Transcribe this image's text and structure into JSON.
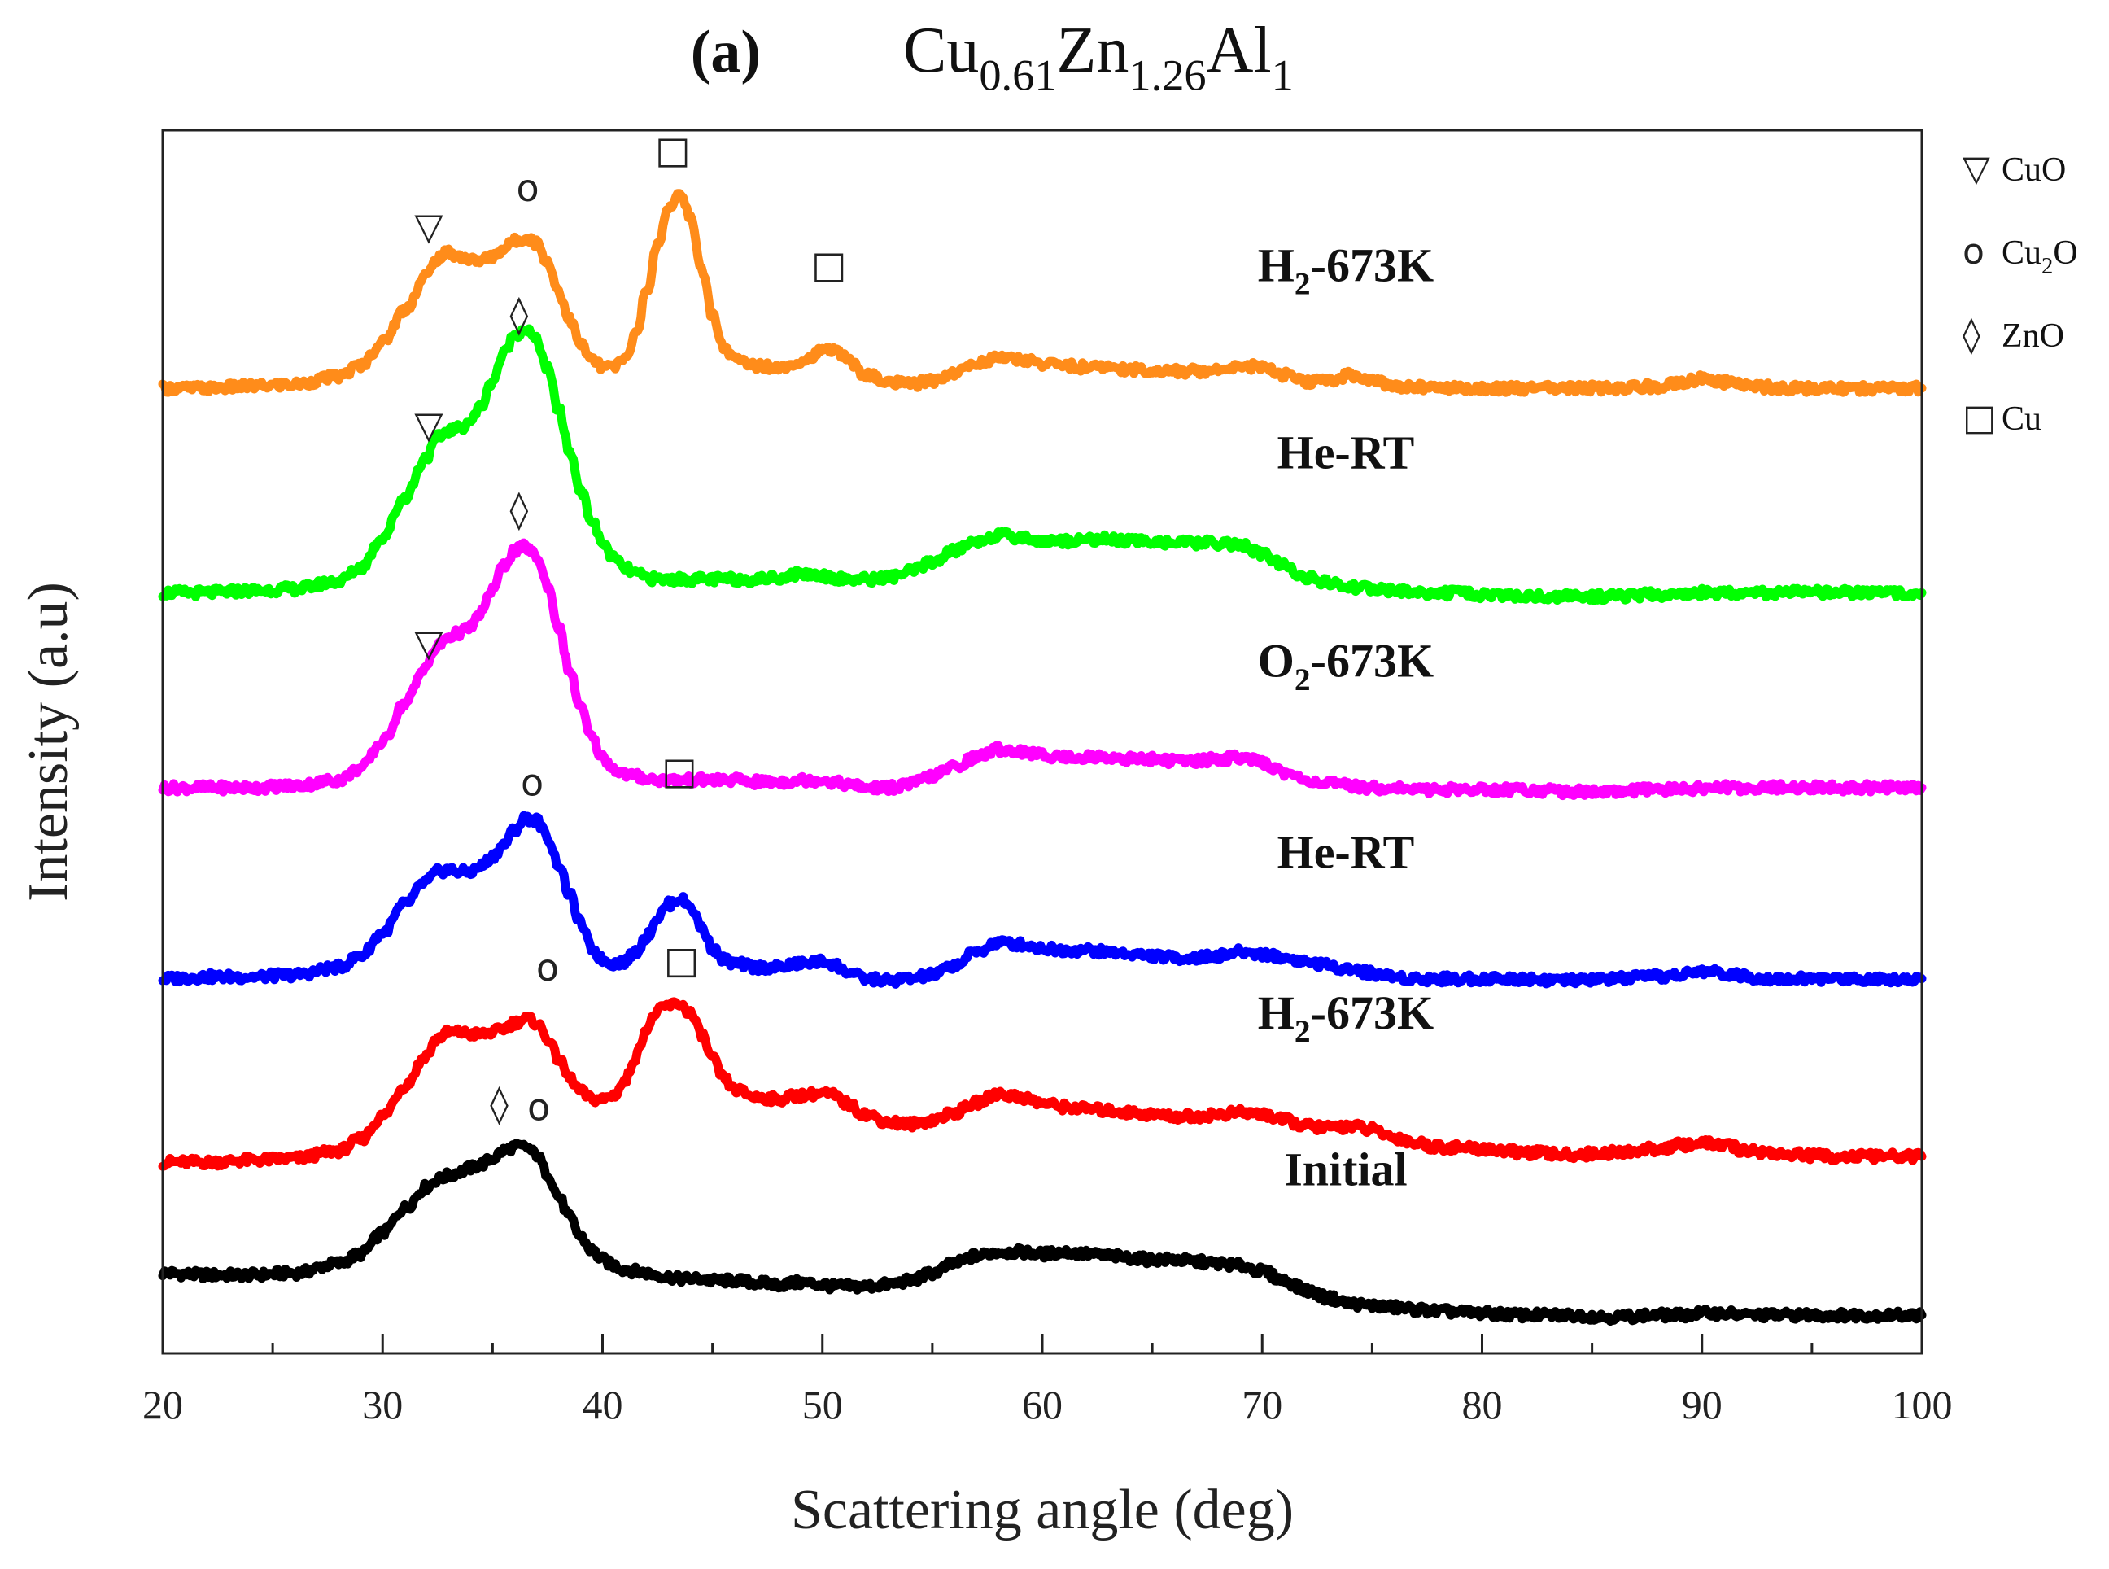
{
  "chart_data": {
    "type": "line",
    "title_tag": "(a)",
    "title_formula": [
      {
        "text": "Cu",
        "sub": false
      },
      {
        "text": "0.61",
        "sub": true
      },
      {
        "text": "Zn",
        "sub": false
      },
      {
        "text": "1.26",
        "sub": true
      },
      {
        "text": "Al",
        "sub": false
      },
      {
        "text": "1",
        "sub": true
      }
    ],
    "xlabel": "Scattering angle (deg)",
    "ylabel": "Intensity (a.u)",
    "xlim": [
      20,
      100
    ],
    "xticks": [
      "20",
      "30",
      "40",
      "50",
      "60",
      "70",
      "80",
      "90",
      "100"
    ],
    "ylim": [
      0,
      6.4
    ],
    "y_ticks_labeled": false,
    "grid": false,
    "legend_position": "top-right, outside plot",
    "legend": [
      {
        "symbol": "▽",
        "label": [
          {
            "text": "CuO",
            "sub": false
          }
        ]
      },
      {
        "symbol": "o",
        "label": [
          {
            "text": "Cu",
            "sub": false
          },
          {
            "text": "2",
            "sub": true
          },
          {
            "text": "O",
            "sub": false
          }
        ]
      },
      {
        "symbol": "◊",
        "label": [
          {
            "text": "ZnO",
            "sub": false
          }
        ]
      },
      {
        "symbol": "□",
        "label": [
          {
            "text": "Cu",
            "sub": false
          }
        ]
      }
    ],
    "x": [
      20,
      22,
      24,
      26,
      28,
      29,
      30,
      31,
      32,
      32.5,
      33,
      33.5,
      34,
      34.5,
      35,
      35.5,
      36,
      36.5,
      37,
      37.5,
      38,
      38.5,
      39,
      39.5,
      40,
      40.5,
      41,
      41.5,
      42,
      42.5,
      43,
      43.5,
      44,
      44.5,
      45,
      45.5,
      46,
      47,
      48,
      49,
      50,
      50.5,
      51,
      52,
      53,
      54,
      55,
      56,
      57,
      58,
      59,
      60,
      61,
      62,
      63,
      64,
      65,
      66,
      67,
      68,
      69,
      70,
      71,
      72,
      73,
      74,
      75,
      76,
      77,
      78,
      80,
      82,
      84,
      86,
      88,
      89,
      90,
      91,
      92,
      94,
      96,
      98,
      100
    ],
    "series": [
      {
        "name": "Initial",
        "color": "#000000",
        "label_parts": [
          {
            "text": "Initial",
            "sub": false
          }
        ],
        "values": [
          0.42,
          0.41,
          0.41,
          0.42,
          0.47,
          0.52,
          0.63,
          0.76,
          0.87,
          0.91,
          0.93,
          0.95,
          0.97,
          0.99,
          1.02,
          1.06,
          1.08,
          1.08,
          1.04,
          0.94,
          0.82,
          0.71,
          0.61,
          0.54,
          0.49,
          0.46,
          0.44,
          0.43,
          0.42,
          0.41,
          0.4,
          0.39,
          0.39,
          0.39,
          0.38,
          0.38,
          0.38,
          0.37,
          0.36,
          0.37,
          0.36,
          0.35,
          0.35,
          0.35,
          0.36,
          0.38,
          0.42,
          0.47,
          0.51,
          0.53,
          0.53,
          0.52,
          0.53,
          0.52,
          0.51,
          0.5,
          0.49,
          0.49,
          0.48,
          0.47,
          0.46,
          0.43,
          0.38,
          0.33,
          0.29,
          0.26,
          0.25,
          0.24,
          0.23,
          0.22,
          0.21,
          0.2,
          0.2,
          0.19,
          0.2,
          0.2,
          0.21,
          0.21,
          0.2,
          0.2,
          0.2,
          0.2,
          0.2
        ]
      },
      {
        "name": "H2-673K",
        "color": "#ff0000",
        "label_parts": [
          {
            "text": "H",
            "sub": false
          },
          {
            "text": "2",
            "sub": true
          },
          {
            "text": "-673K",
            "sub": false
          }
        ],
        "values": [
          1.0,
          1.0,
          1.01,
          1.02,
          1.06,
          1.12,
          1.24,
          1.4,
          1.56,
          1.65,
          1.68,
          1.68,
          1.67,
          1.67,
          1.68,
          1.7,
          1.73,
          1.75,
          1.73,
          1.65,
          1.54,
          1.44,
          1.37,
          1.33,
          1.33,
          1.35,
          1.42,
          1.55,
          1.7,
          1.79,
          1.82,
          1.83,
          1.78,
          1.67,
          1.54,
          1.44,
          1.38,
          1.34,
          1.33,
          1.35,
          1.36,
          1.35,
          1.31,
          1.25,
          1.21,
          1.2,
          1.22,
          1.26,
          1.31,
          1.36,
          1.34,
          1.31,
          1.29,
          1.28,
          1.27,
          1.26,
          1.25,
          1.24,
          1.24,
          1.25,
          1.26,
          1.25,
          1.22,
          1.19,
          1.18,
          1.19,
          1.17,
          1.13,
          1.1,
          1.08,
          1.07,
          1.05,
          1.04,
          1.05,
          1.07,
          1.09,
          1.1,
          1.09,
          1.06,
          1.04,
          1.03,
          1.03,
          1.03
        ]
      },
      {
        "name": "He-RT",
        "color": "#0000ff",
        "label_parts": [
          {
            "text": "He-RT",
            "sub": false
          }
        ],
        "values": [
          1.96,
          1.97,
          1.97,
          1.98,
          2.02,
          2.08,
          2.2,
          2.35,
          2.47,
          2.52,
          2.53,
          2.52,
          2.52,
          2.55,
          2.6,
          2.66,
          2.74,
          2.8,
          2.79,
          2.7,
          2.56,
          2.4,
          2.25,
          2.12,
          2.06,
          2.04,
          2.05,
          2.1,
          2.18,
          2.28,
          2.35,
          2.38,
          2.34,
          2.23,
          2.12,
          2.06,
          2.04,
          2.02,
          2.02,
          2.04,
          2.05,
          2.04,
          2.0,
          1.96,
          1.95,
          1.96,
          1.98,
          2.03,
          2.1,
          2.15,
          2.14,
          2.12,
          2.11,
          2.11,
          2.1,
          2.09,
          2.08,
          2.07,
          2.07,
          2.08,
          2.1,
          2.09,
          2.07,
          2.05,
          2.03,
          2.01,
          1.99,
          1.97,
          1.96,
          1.96,
          1.96,
          1.96,
          1.95,
          1.96,
          1.97,
          1.98,
          2.0,
          1.99,
          1.97,
          1.96,
          1.96,
          1.96,
          1.96
        ]
      },
      {
        "name": "O2-673K",
        "color": "#ff00ff",
        "label_parts": [
          {
            "text": "O",
            "sub": false
          },
          {
            "text": "2",
            "sub": true
          },
          {
            "text": "-673K",
            "sub": false
          }
        ],
        "values": [
          2.96,
          2.96,
          2.96,
          2.97,
          3.0,
          3.06,
          3.2,
          3.4,
          3.6,
          3.7,
          3.75,
          3.77,
          3.8,
          3.88,
          4.0,
          4.12,
          4.2,
          4.22,
          4.17,
          4.02,
          3.8,
          3.57,
          3.38,
          3.22,
          3.12,
          3.06,
          3.03,
          3.02,
          3.01,
          3.0,
          3.0,
          3.0,
          3.0,
          3.0,
          3.0,
          3.0,
          3.0,
          2.99,
          2.99,
          3.0,
          3.0,
          2.99,
          2.98,
          2.96,
          2.96,
          2.98,
          3.02,
          3.07,
          3.12,
          3.16,
          3.15,
          3.13,
          3.12,
          3.12,
          3.12,
          3.11,
          3.11,
          3.1,
          3.1,
          3.11,
          3.12,
          3.09,
          3.04,
          3.0,
          2.98,
          2.97,
          2.96,
          2.96,
          2.95,
          2.95,
          2.95,
          2.95,
          2.94,
          2.94,
          2.95,
          2.95,
          2.96,
          2.96,
          2.96,
          2.96,
          2.96,
          2.96,
          2.96
        ]
      },
      {
        "name": "He-RT",
        "color": "#00ff00",
        "label_parts": [
          {
            "text": "He-RT",
            "sub": false
          }
        ],
        "values": [
          3.98,
          3.98,
          3.99,
          4.0,
          4.04,
          4.11,
          4.27,
          4.48,
          4.69,
          4.79,
          4.83,
          4.84,
          4.88,
          4.96,
          5.09,
          5.23,
          5.33,
          5.36,
          5.3,
          5.15,
          4.94,
          4.72,
          4.52,
          4.36,
          4.24,
          4.16,
          4.11,
          4.08,
          4.06,
          4.05,
          4.05,
          4.05,
          4.05,
          4.05,
          4.05,
          4.05,
          4.05,
          4.05,
          4.06,
          4.08,
          4.07,
          4.06,
          4.05,
          4.05,
          4.06,
          4.09,
          4.14,
          4.2,
          4.25,
          4.28,
          4.27,
          4.25,
          4.25,
          4.26,
          4.26,
          4.25,
          4.25,
          4.24,
          4.24,
          4.24,
          4.23,
          4.18,
          4.12,
          4.06,
          4.03,
          4.01,
          4.0,
          3.99,
          3.98,
          3.98,
          3.97,
          3.96,
          3.96,
          3.96,
          3.97,
          3.97,
          3.98,
          3.98,
          3.98,
          3.98,
          3.98,
          3.98,
          3.98
        ]
      },
      {
        "name": "H2-673K",
        "color": "#ff8c1a",
        "label_parts": [
          {
            "text": "H",
            "sub": false
          },
          {
            "text": "2",
            "sub": true
          },
          {
            "text": "-673K",
            "sub": false
          }
        ],
        "values": [
          5.05,
          5.05,
          5.06,
          5.07,
          5.11,
          5.17,
          5.29,
          5.46,
          5.64,
          5.73,
          5.76,
          5.74,
          5.72,
          5.72,
          5.74,
          5.78,
          5.82,
          5.84,
          5.81,
          5.71,
          5.56,
          5.41,
          5.28,
          5.2,
          5.16,
          5.16,
          5.2,
          5.33,
          5.55,
          5.8,
          6.0,
          6.06,
          5.95,
          5.68,
          5.43,
          5.27,
          5.2,
          5.17,
          5.16,
          5.19,
          5.24,
          5.26,
          5.21,
          5.12,
          5.08,
          5.07,
          5.09,
          5.13,
          5.18,
          5.21,
          5.2,
          5.18,
          5.17,
          5.16,
          5.16,
          5.15,
          5.14,
          5.14,
          5.14,
          5.15,
          5.17,
          5.16,
          5.12,
          5.08,
          5.09,
          5.12,
          5.09,
          5.06,
          5.06,
          5.05,
          5.05,
          5.05,
          5.05,
          5.05,
          5.06,
          5.08,
          5.1,
          5.08,
          5.06,
          5.05,
          5.05,
          5.05,
          5.05
        ]
      }
    ],
    "annotations": [
      {
        "symbol": "◊",
        "x": 35.3,
        "y": 1.24
      },
      {
        "symbol": "o",
        "x": 37.1,
        "y": 1.22
      },
      {
        "symbol": "o",
        "x": 37.5,
        "y": 1.95
      },
      {
        "symbol": "□",
        "x": 43.6,
        "y": 1.99
      },
      {
        "symbol": "o",
        "x": 36.8,
        "y": 2.92
      },
      {
        "symbol": "□",
        "x": 43.5,
        "y": 2.98
      },
      {
        "symbol": "▽",
        "x": 32.1,
        "y": 3.65
      },
      {
        "symbol": "◊",
        "x": 36.2,
        "y": 4.35
      },
      {
        "symbol": "▽",
        "x": 32.1,
        "y": 4.79
      },
      {
        "symbol": "◊",
        "x": 36.2,
        "y": 5.37
      },
      {
        "symbol": "▽",
        "x": 32.1,
        "y": 5.83
      },
      {
        "symbol": "o",
        "x": 36.6,
        "y": 6.03
      },
      {
        "symbol": "□",
        "x": 43.2,
        "y": 6.23
      },
      {
        "symbol": "□",
        "x": 50.3,
        "y": 5.63
      }
    ],
    "series_label_x": 70.0
  }
}
